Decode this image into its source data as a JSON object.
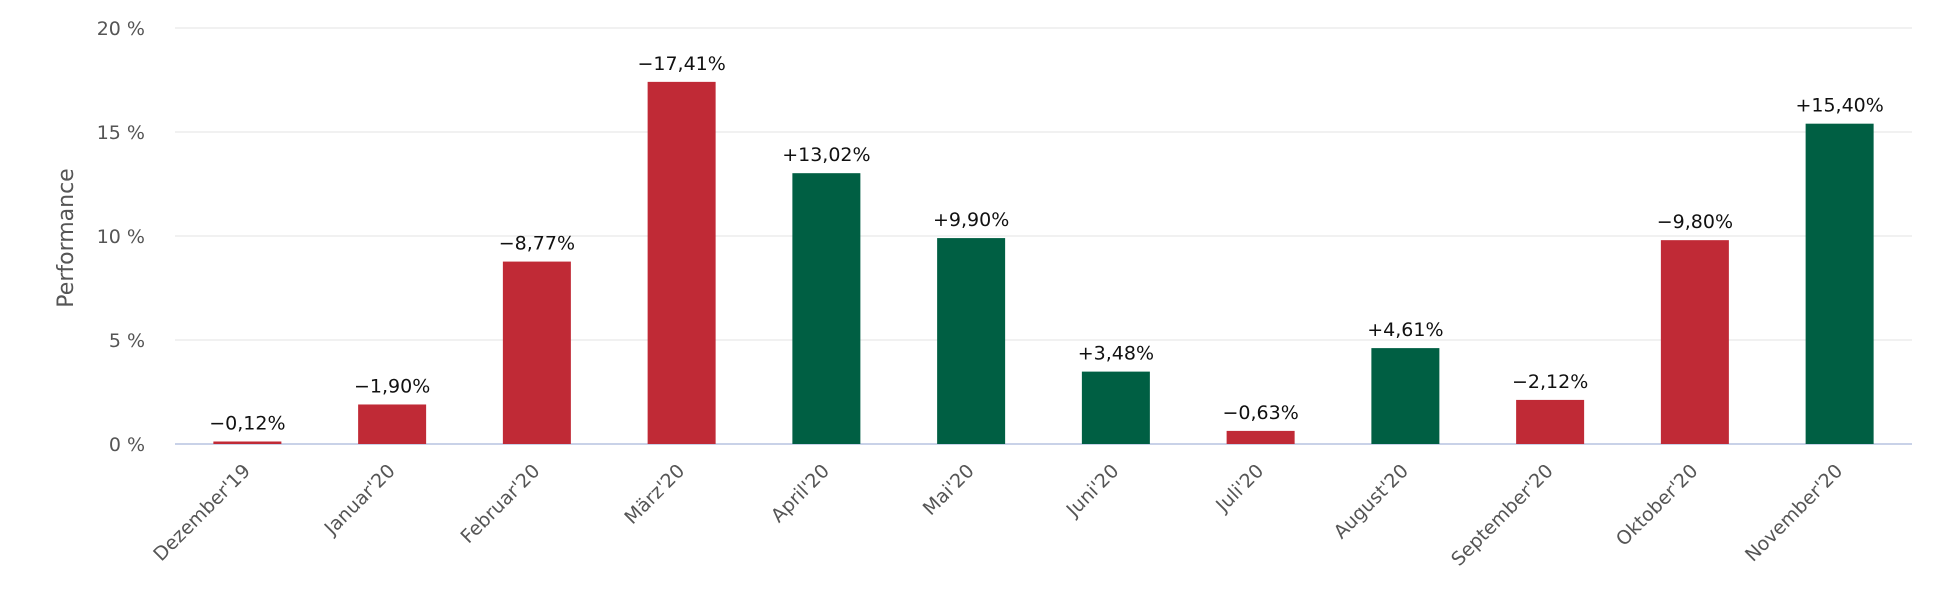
{
  "chart_data": {
    "type": "bar",
    "ylabel": "Performance",
    "ylim": [
      0,
      20
    ],
    "yticks": [
      0,
      5,
      10,
      15,
      20
    ],
    "ytick_labels": [
      "0 %",
      "5 %",
      "10 %",
      "15 %",
      "20 %"
    ],
    "grid": true,
    "legend": "none",
    "categories": [
      "Dezember'19",
      "Januar'20",
      "Februar'20",
      "März'20",
      "April'20",
      "Mai'20",
      "Juni'20",
      "Juli'20",
      "August'20",
      "September'20",
      "Oktober'20",
      "November'20"
    ],
    "values": [
      0.12,
      1.9,
      8.77,
      17.41,
      13.02,
      9.9,
      3.48,
      0.63,
      4.61,
      2.12,
      9.8,
      15.4
    ],
    "signs": [
      "negative",
      "negative",
      "negative",
      "negative",
      "positive",
      "positive",
      "positive",
      "negative",
      "positive",
      "negative",
      "negative",
      "positive"
    ],
    "data_labels": [
      "−0,12%",
      "−1,90%",
      "−8,77%",
      "−17,41%",
      "+13,02%",
      "+9,90%",
      "+3,48%",
      "−0,63%",
      "+4,61%",
      "−2,12%",
      "−9,80%",
      "+15,40%"
    ],
    "colors": {
      "positive": "#005f43",
      "negative": "#c02a36"
    }
  }
}
